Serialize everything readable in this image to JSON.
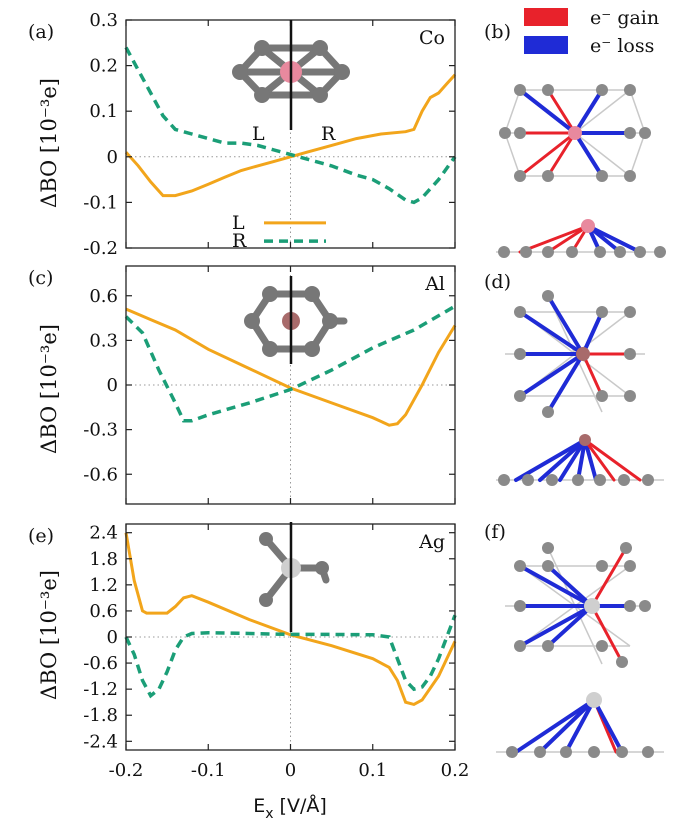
{
  "legend_bonds": {
    "gain": "e⁻ gain",
    "loss": "e⁻ loss",
    "gain_color": "#e8222b",
    "loss_color": "#1f2bd6"
  },
  "xlabel": "E",
  "xlabel_sub": "x",
  "xlabel_unit": " [V/Å]",
  "ylabel": "ΔBO [10⁻³e]",
  "right_labels": [
    "(b)",
    "(d)",
    "(f)"
  ],
  "colors": {
    "L": "#f2a51b",
    "R": "#1b9e77",
    "Co": "#e8899e",
    "Al": "#a86b6b",
    "Ag": "#cfcfcf"
  },
  "chart_data": [
    {
      "type": "line",
      "label": "(a)",
      "element": "Co",
      "xlim": [
        -0.2,
        0.2
      ],
      "ylim": [
        -0.2,
        0.3
      ],
      "xticks": [
        "-0.2",
        "-0.1",
        "0",
        "0.1",
        "0.2"
      ],
      "yticks": [
        -0.2,
        -0.1,
        0,
        0.1,
        0.2,
        0.3
      ],
      "ytick_labels": [
        "-0.2",
        "-0.1",
        "0",
        "0.1",
        "0.2",
        "0.3"
      ],
      "legend": [
        "L",
        "R"
      ],
      "inset_labels": [
        "L",
        "R"
      ],
      "series": [
        {
          "name": "L",
          "x": [
            -0.2,
            -0.185,
            -0.17,
            -0.155,
            -0.14,
            -0.12,
            -0.1,
            -0.08,
            -0.06,
            -0.04,
            -0.02,
            0,
            0.02,
            0.05,
            0.08,
            0.11,
            0.14,
            0.15,
            0.16,
            0.17,
            0.18,
            0.19,
            0.2
          ],
          "y": [
            0.01,
            -0.02,
            -0.055,
            -0.085,
            -0.085,
            -0.075,
            -0.06,
            -0.045,
            -0.03,
            -0.02,
            -0.01,
            0,
            0.01,
            0.025,
            0.04,
            0.05,
            0.055,
            0.06,
            0.1,
            0.13,
            0.14,
            0.16,
            0.18
          ]
        },
        {
          "name": "R",
          "x": [
            -0.2,
            -0.185,
            -0.17,
            -0.155,
            -0.14,
            -0.12,
            -0.1,
            -0.08,
            -0.06,
            -0.04,
            -0.02,
            0,
            0.02,
            0.05,
            0.08,
            0.1,
            0.12,
            0.14,
            0.15,
            0.16,
            0.18,
            0.2
          ],
          "y": [
            0.24,
            0.19,
            0.14,
            0.09,
            0.06,
            0.05,
            0.04,
            0.03,
            0.03,
            0.025,
            0.015,
            0.005,
            -0.005,
            -0.02,
            -0.04,
            -0.05,
            -0.07,
            -0.095,
            -0.1,
            -0.09,
            -0.05,
            0.0
          ]
        }
      ]
    },
    {
      "type": "line",
      "label": "(c)",
      "element": "Al",
      "xlim": [
        -0.2,
        0.2
      ],
      "ylim": [
        -0.8,
        0.8
      ],
      "xticks": [
        "-0.2",
        "-0.1",
        "0",
        "0.1",
        "0.2"
      ],
      "yticks": [
        -0.6,
        -0.3,
        0,
        0.3,
        0.6
      ],
      "ytick_labels": [
        "-0.6",
        "-0.3",
        "0",
        "0.3",
        "0.6"
      ],
      "series": [
        {
          "name": "L",
          "x": [
            -0.2,
            -0.17,
            -0.14,
            -0.1,
            -0.05,
            0,
            0.05,
            0.1,
            0.12,
            0.13,
            0.14,
            0.16,
            0.18,
            0.2
          ],
          "y": [
            0.51,
            0.44,
            0.37,
            0.24,
            0.11,
            -0.02,
            -0.12,
            -0.22,
            -0.27,
            -0.26,
            -0.2,
            0.0,
            0.22,
            0.4
          ]
        },
        {
          "name": "R",
          "x": [
            -0.2,
            -0.18,
            -0.16,
            -0.14,
            -0.13,
            -0.12,
            -0.1,
            -0.05,
            0,
            0.05,
            0.1,
            0.15,
            0.2
          ],
          "y": [
            0.46,
            0.35,
            0.1,
            -0.12,
            -0.24,
            -0.24,
            -0.2,
            -0.12,
            -0.03,
            0.1,
            0.25,
            0.37,
            0.53
          ]
        }
      ]
    },
    {
      "type": "line",
      "label": "(e)",
      "element": "Ag",
      "xlim": [
        -0.2,
        0.2
      ],
      "ylim": [
        -2.6,
        2.6
      ],
      "xticks": [
        "-0.2",
        "-0.1",
        "0",
        "0.1",
        "0.2"
      ],
      "yticks": [
        -2.4,
        -1.8,
        -1.2,
        -0.6,
        0,
        0.6,
        1.2,
        1.8,
        2.4
      ],
      "ytick_labels": [
        "-2.4",
        "-1.8",
        "-1.2",
        "-0.6",
        "0",
        "0.6",
        "1.2",
        "1.8",
        "2.4"
      ],
      "series": [
        {
          "name": "L",
          "x": [
            -0.2,
            -0.19,
            -0.18,
            -0.175,
            -0.16,
            -0.15,
            -0.14,
            -0.13,
            -0.12,
            -0.1,
            -0.05,
            0,
            0.05,
            0.1,
            0.12,
            0.13,
            0.14,
            0.15,
            0.16,
            0.18,
            0.2
          ],
          "y": [
            2.4,
            1.3,
            0.6,
            0.55,
            0.55,
            0.55,
            0.7,
            0.9,
            0.95,
            0.8,
            0.4,
            0.05,
            -0.2,
            -0.5,
            -0.7,
            -1.0,
            -1.5,
            -1.55,
            -1.45,
            -0.9,
            -0.1
          ]
        },
        {
          "name": "R",
          "x": [
            -0.2,
            -0.19,
            -0.18,
            -0.17,
            -0.16,
            -0.15,
            -0.14,
            -0.13,
            -0.12,
            -0.1,
            -0.05,
            0,
            0.05,
            0.1,
            0.12,
            0.13,
            0.14,
            0.15,
            0.16,
            0.17,
            0.18,
            0.19,
            0.2
          ],
          "y": [
            0.0,
            -0.4,
            -1.0,
            -1.35,
            -1.2,
            -0.8,
            -0.3,
            0.0,
            0.08,
            0.1,
            0.08,
            0.06,
            0.06,
            0.05,
            0.0,
            -0.5,
            -1.0,
            -1.2,
            -1.15,
            -0.9,
            -0.5,
            0.0,
            0.5
          ]
        }
      ]
    }
  ]
}
